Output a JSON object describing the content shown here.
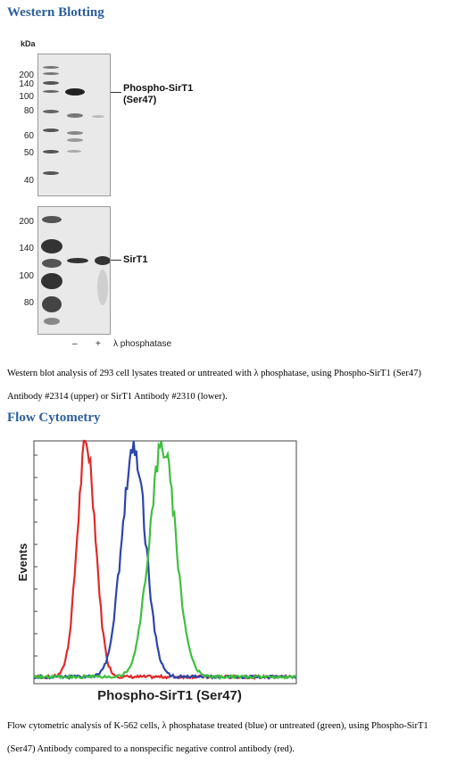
{
  "western": {
    "title": "Western Blotting",
    "kda_label": "kDa",
    "upper_markers": [
      "200",
      "140",
      "100",
      "80",
      "60",
      "50",
      "40"
    ],
    "lower_markers": [
      "200",
      "140",
      "100",
      "80"
    ],
    "upper_label_line1": "Phospho-SirT1",
    "upper_label_line2": "(Ser47)",
    "lower_label": "SirT1",
    "lane_minus": "–",
    "lane_plus": "+",
    "lane_treatment": "λ phosphatase",
    "caption": "Western blot analysis of 293 cell lysates treated or untreated with λ phosphatase, using Phospho-SirT1 (Ser47) Antibody #2314 (upper) or SirT1 Antibody #2310 (lower)."
  },
  "flow": {
    "title": "Flow Cytometry",
    "ylabel": "Events",
    "xlabel": "Phospho-SirT1 (Ser47)",
    "caption": "Flow cytometric analysis of K-562 cells, λ phosphatase treated (blue) or untreated (green), using Phospho-SirT1 (Ser47) Antibody compared to a nonspecific negative control antibody (red)."
  },
  "chart_data": {
    "type": "line",
    "title": "",
    "xlabel": "Phospho-SirT1 (Ser47)",
    "ylabel": "Events",
    "x_scale": "log (fluorescence intensity, unlabeled)",
    "grid": false,
    "legend": "none",
    "series": [
      {
        "color": "#e02a2a",
        "peak_x": 0.2,
        "width": 0.035
      },
      {
        "color": "#2c46a8",
        "peak_x": 0.38,
        "width": 0.045
      },
      {
        "color": "#3fbf3f",
        "peak_x": 0.49,
        "width": 0.05
      }
    ]
  }
}
